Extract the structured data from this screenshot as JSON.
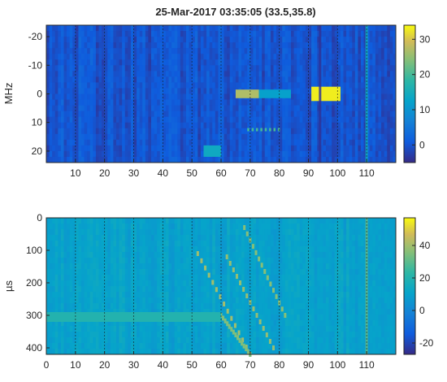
{
  "chart_data": [
    {
      "type": "heatmap",
      "title": "25-Mar-2017 03:35:05 (33.5,35.8)",
      "xlabel": "",
      "ylabel": "MHz",
      "xlim": [
        0,
        120
      ],
      "ylim": [
        -24,
        24
      ],
      "y_reversed": true,
      "x_tick_labels": [
        "10",
        "20",
        "30",
        "40",
        "50",
        "60",
        "70",
        "80",
        "90",
        "100",
        "110"
      ],
      "y_tick_labels": [
        "-20",
        "-10",
        "0",
        "10",
        "20"
      ],
      "colorbar": {
        "ticks": [
          "30",
          "20",
          "10",
          "0"
        ],
        "range": [
          -5,
          34
        ]
      },
      "features": [
        {
          "kind": "band",
          "x": [
            65,
            73
          ],
          "y": [
            -1.5,
            1.5
          ],
          "value": 27
        },
        {
          "kind": "band",
          "x": [
            73,
            84
          ],
          "y": [
            -1.5,
            1.5
          ],
          "value": 12
        },
        {
          "kind": "band",
          "x": [
            91,
            101
          ],
          "y": [
            -2.5,
            2.5
          ],
          "value": 33
        },
        {
          "kind": "band",
          "x": [
            54,
            60
          ],
          "y": [
            18,
            22
          ],
          "value": 14
        },
        {
          "kind": "column",
          "x": 94,
          "value": -4
        },
        {
          "kind": "column",
          "x": 110,
          "value": 14
        },
        {
          "kind": "row",
          "y": 12.5,
          "x": [
            69,
            80
          ],
          "value": 20
        }
      ]
    },
    {
      "type": "heatmap",
      "title": "",
      "xlabel": "",
      "ylabel": "µs",
      "xlim": [
        0,
        120
      ],
      "ylim": [
        0,
        420
      ],
      "y_reversed": true,
      "x_tick_labels": [
        "0",
        "10",
        "20",
        "30",
        "40",
        "50",
        "60",
        "70",
        "80",
        "90",
        "100",
        "110"
      ],
      "y_tick_labels": [
        "0",
        "100",
        "200",
        "300",
        "400"
      ],
      "colorbar": {
        "ticks": [
          "40",
          "20",
          "0",
          "-20"
        ],
        "range": [
          -27,
          57
        ]
      },
      "features": [
        {
          "kind": "diagonal",
          "from": [
            52,
            110
          ],
          "to": [
            70,
            420
          ],
          "value": 40
        },
        {
          "kind": "diagonal",
          "from": [
            62,
            120
          ],
          "to": [
            78,
            400
          ],
          "value": 38
        },
        {
          "kind": "diagonal",
          "from": [
            68,
            30
          ],
          "to": [
            82,
            300
          ],
          "value": 36
        },
        {
          "kind": "diagonal",
          "from": [
            60,
            300
          ],
          "to": [
            70,
            420
          ],
          "value": 35
        },
        {
          "kind": "band",
          "x": [
            0,
            60
          ],
          "y": [
            290,
            320
          ],
          "value": 20
        },
        {
          "kind": "column",
          "x": 110,
          "value": 30
        }
      ]
    }
  ]
}
